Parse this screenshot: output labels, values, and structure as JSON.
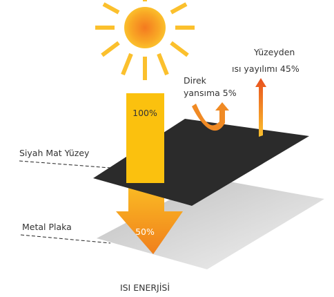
{
  "sun_beam_label": "100%",
  "reflection_label": [
    "Direk",
    "yansıma 5%"
  ],
  "emission_label": [
    "Yüzeyden",
    "ısı yayılımı 45%"
  ],
  "surface_label": "Siyah Mat Yüzey",
  "plate_label": "Metal Plaka",
  "transfer_label": "50%",
  "caption": "ISI ENERJİSİ"
}
